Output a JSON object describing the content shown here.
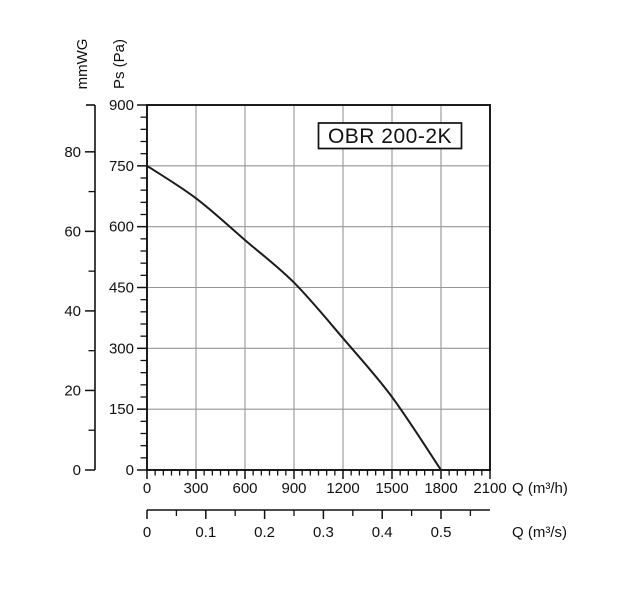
{
  "page": {
    "kind": "fan-performance-curve-chart"
  },
  "colors": {
    "background": "#ffffff",
    "grid": "#969696",
    "axis": "#111111",
    "curve": "#1c1c1c",
    "text": "#111111",
    "title_box_border": "#111111",
    "title_box_fill": "#ffffff"
  },
  "chart_data": {
    "type": "line",
    "title": "OBR 200-2K",
    "xlabel": "Q (m³/h)",
    "x2label": "Q (m³/s)",
    "ylabel": "Ps (Pa)",
    "y2label": "mmWG",
    "xlim": [
      0,
      2100
    ],
    "ylim": [
      0,
      900
    ],
    "grid": true,
    "legend": false,
    "x_tick_labels": [
      "0",
      "300",
      "600",
      "900",
      "1200",
      "1500",
      "1800",
      "2100"
    ],
    "x_major_step": 300,
    "x_minor_step": 50,
    "y_tick_labels": [
      "0",
      "150",
      "300",
      "450",
      "600",
      "750",
      "900"
    ],
    "y_major_step": 150,
    "y_minor_step": 30,
    "x2_tick_labels": [
      "0",
      "0.1",
      "0.2",
      "0.3",
      "0.4",
      "0.5"
    ],
    "x2_minor_step": 0.05,
    "x2_max": 0.5833,
    "x2_to_x_factor": 3600,
    "y2_tick_labels": [
      "0",
      "20",
      "40",
      "60",
      "80"
    ],
    "y2_minor_ticks": [
      10,
      30,
      50,
      70
    ],
    "y2_pa_per_unit": 9.80665,
    "series": [
      {
        "name": "OBR 200-2K",
        "x": [
          0,
          300,
          600,
          900,
          1200,
          1500,
          1800
        ],
        "y": [
          750,
          670,
          567,
          462,
          325,
          180,
          0
        ]
      }
    ]
  }
}
